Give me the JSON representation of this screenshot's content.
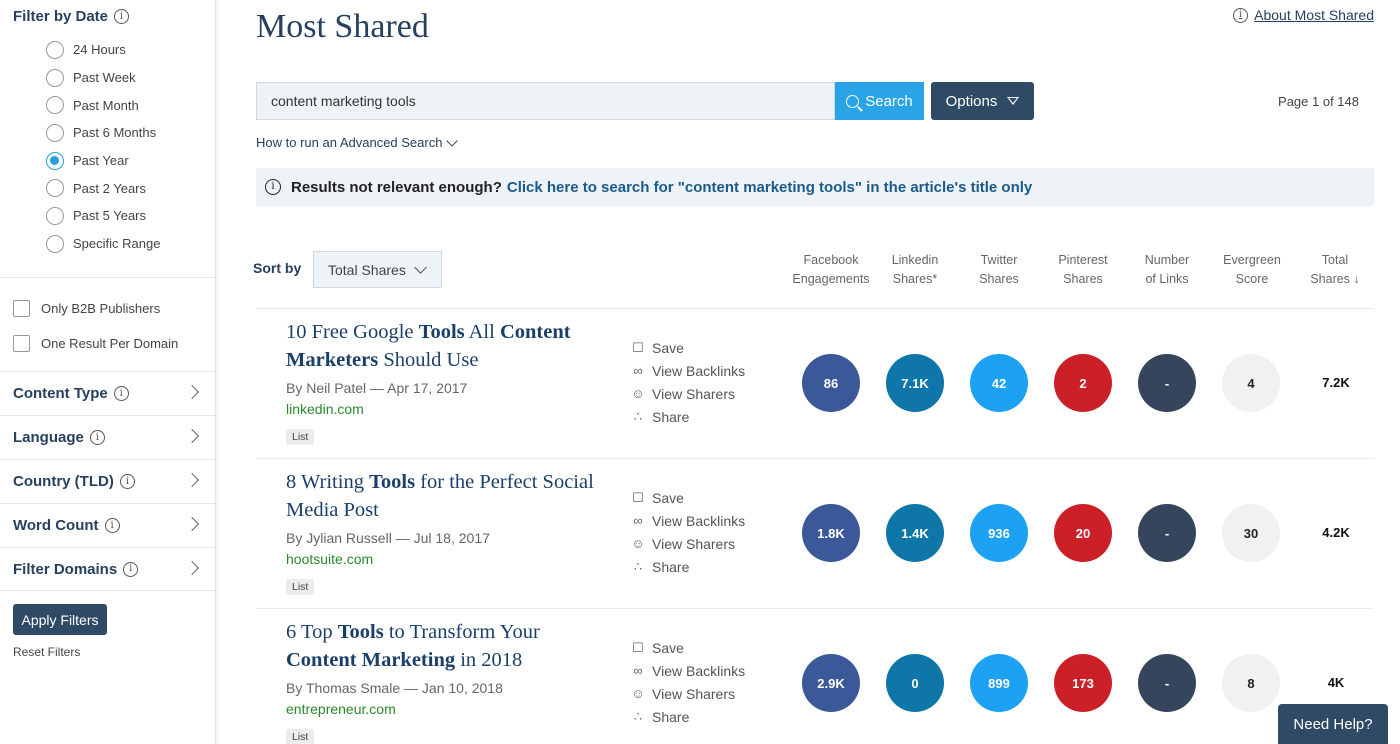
{
  "sidebar": {
    "filter_by_date": "Filter by Date",
    "date_options": [
      {
        "label": "24 Hours",
        "checked": false
      },
      {
        "label": "Past Week",
        "checked": false
      },
      {
        "label": "Past Month",
        "checked": false
      },
      {
        "label": "Past 6 Months",
        "checked": false
      },
      {
        "label": "Past Year",
        "checked": true
      },
      {
        "label": "Past 2 Years",
        "checked": false
      },
      {
        "label": "Past 5 Years",
        "checked": false
      },
      {
        "label": "Specific Range",
        "checked": false
      }
    ],
    "only_b2b": "Only B2B Publishers",
    "one_per_domain": "One Result Per Domain",
    "facets": {
      "content_type": "Content Type",
      "language": "Language",
      "country": "Country (TLD)",
      "word_count": "Word Count",
      "filter_domains": "Filter Domains"
    },
    "apply": "Apply Filters",
    "reset": "Reset Filters"
  },
  "header": {
    "title": "Most Shared",
    "about": "About Most Shared"
  },
  "search": {
    "value": "content marketing tools",
    "button": "Search",
    "options": "Options",
    "page_count": "Page 1 of 148",
    "advanced": "How to run an Advanced Search"
  },
  "notice": {
    "text": "Results not relevant enough?",
    "link": "Click here to search for \"content marketing tools\" in the article's title only"
  },
  "sort": {
    "label": "Sort by",
    "selected": "Total Shares"
  },
  "columns": {
    "facebook": [
      "Facebook",
      "Engagements"
    ],
    "linkedin": [
      "Linkedin",
      "Shares*"
    ],
    "twitter": [
      "Twitter",
      "Shares"
    ],
    "pinterest": [
      "Pinterest",
      "Shares"
    ],
    "links": [
      "Number",
      "of Links"
    ],
    "evergreen": [
      "Evergreen",
      "Score"
    ],
    "total": [
      "Total",
      "Shares ↓"
    ]
  },
  "actions": {
    "save": "Save",
    "backlinks": "View Backlinks",
    "sharers": "View Sharers",
    "share": "Share"
  },
  "colors": {
    "facebook": "#3b5998",
    "linkedin": "#0e76a8",
    "twitter": "#1da1f2",
    "pinterest": "#cb2027",
    "links": "#35465c",
    "evergreen": "#f1f1f1"
  },
  "articles": [
    {
      "title_parts": [
        "10 Free Google ",
        "Tools",
        " All ",
        "Content Marketers",
        " Should Use"
      ],
      "author": "By Neil Patel",
      "date": "Apr 17, 2017",
      "domain": "linkedin.com",
      "tag": "List",
      "facebook": "86",
      "linkedin": "7.1K",
      "twitter": "42",
      "pinterest": "2",
      "links": "-",
      "evergreen": "4",
      "total": "7.2K"
    },
    {
      "title_parts": [
        "8 Writing ",
        "Tools",
        " for the Perfect Social Media Post",
        "",
        ""
      ],
      "author": "By Jylian Russell",
      "date": "Jul 18, 2017",
      "domain": "hootsuite.com",
      "tag": "List",
      "facebook": "1.8K",
      "linkedin": "1.4K",
      "twitter": "936",
      "pinterest": "20",
      "links": "-",
      "evergreen": "30",
      "total": "4.2K"
    },
    {
      "title_parts": [
        "6 Top ",
        "Tools",
        " to Transform Your ",
        "Content Marketing",
        " in 2018"
      ],
      "author": "By Thomas Smale",
      "date": "Jan 10, 2018",
      "domain": "entrepreneur.com",
      "tag": "List",
      "facebook": "2.9K",
      "linkedin": "0",
      "twitter": "899",
      "pinterest": "173",
      "links": "-",
      "evergreen": "8",
      "total": "4K"
    }
  ],
  "help": "Need Help?"
}
